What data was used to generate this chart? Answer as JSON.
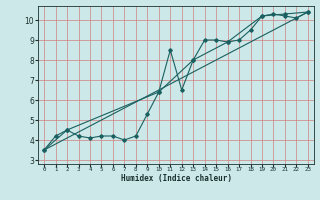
{
  "title": "",
  "xlabel": "Humidex (Indice chaleur)",
  "ylabel": "",
  "bg_color": "#cce8e8",
  "grid_color": "#d08080",
  "line_color": "#1a6060",
  "xlim": [
    -0.5,
    23.5
  ],
  "ylim": [
    2.8,
    10.7
  ],
  "yticks": [
    3,
    4,
    5,
    6,
    7,
    8,
    9,
    10
  ],
  "xticks": [
    0,
    1,
    2,
    3,
    4,
    5,
    6,
    7,
    8,
    9,
    10,
    11,
    12,
    13,
    14,
    15,
    16,
    17,
    18,
    19,
    20,
    21,
    22,
    23
  ],
  "line1_x": [
    0,
    1,
    2,
    3,
    4,
    5,
    6,
    7,
    8,
    9,
    10,
    11,
    12,
    13,
    14,
    15,
    16,
    17,
    18,
    19,
    20,
    21,
    22,
    23
  ],
  "line1_y": [
    3.5,
    4.2,
    4.5,
    4.2,
    4.1,
    4.2,
    4.2,
    4.0,
    4.2,
    5.3,
    6.4,
    8.5,
    6.5,
    8.0,
    9.0,
    9.0,
    8.9,
    9.0,
    9.5,
    10.2,
    10.3,
    10.2,
    10.1,
    10.4
  ],
  "line2_x": [
    0,
    2,
    10,
    13,
    16,
    19,
    21,
    23
  ],
  "line2_y": [
    3.5,
    4.5,
    6.4,
    8.0,
    8.9,
    10.2,
    10.3,
    10.4
  ],
  "line3_x": [
    0,
    23
  ],
  "line3_y": [
    3.5,
    10.4
  ]
}
